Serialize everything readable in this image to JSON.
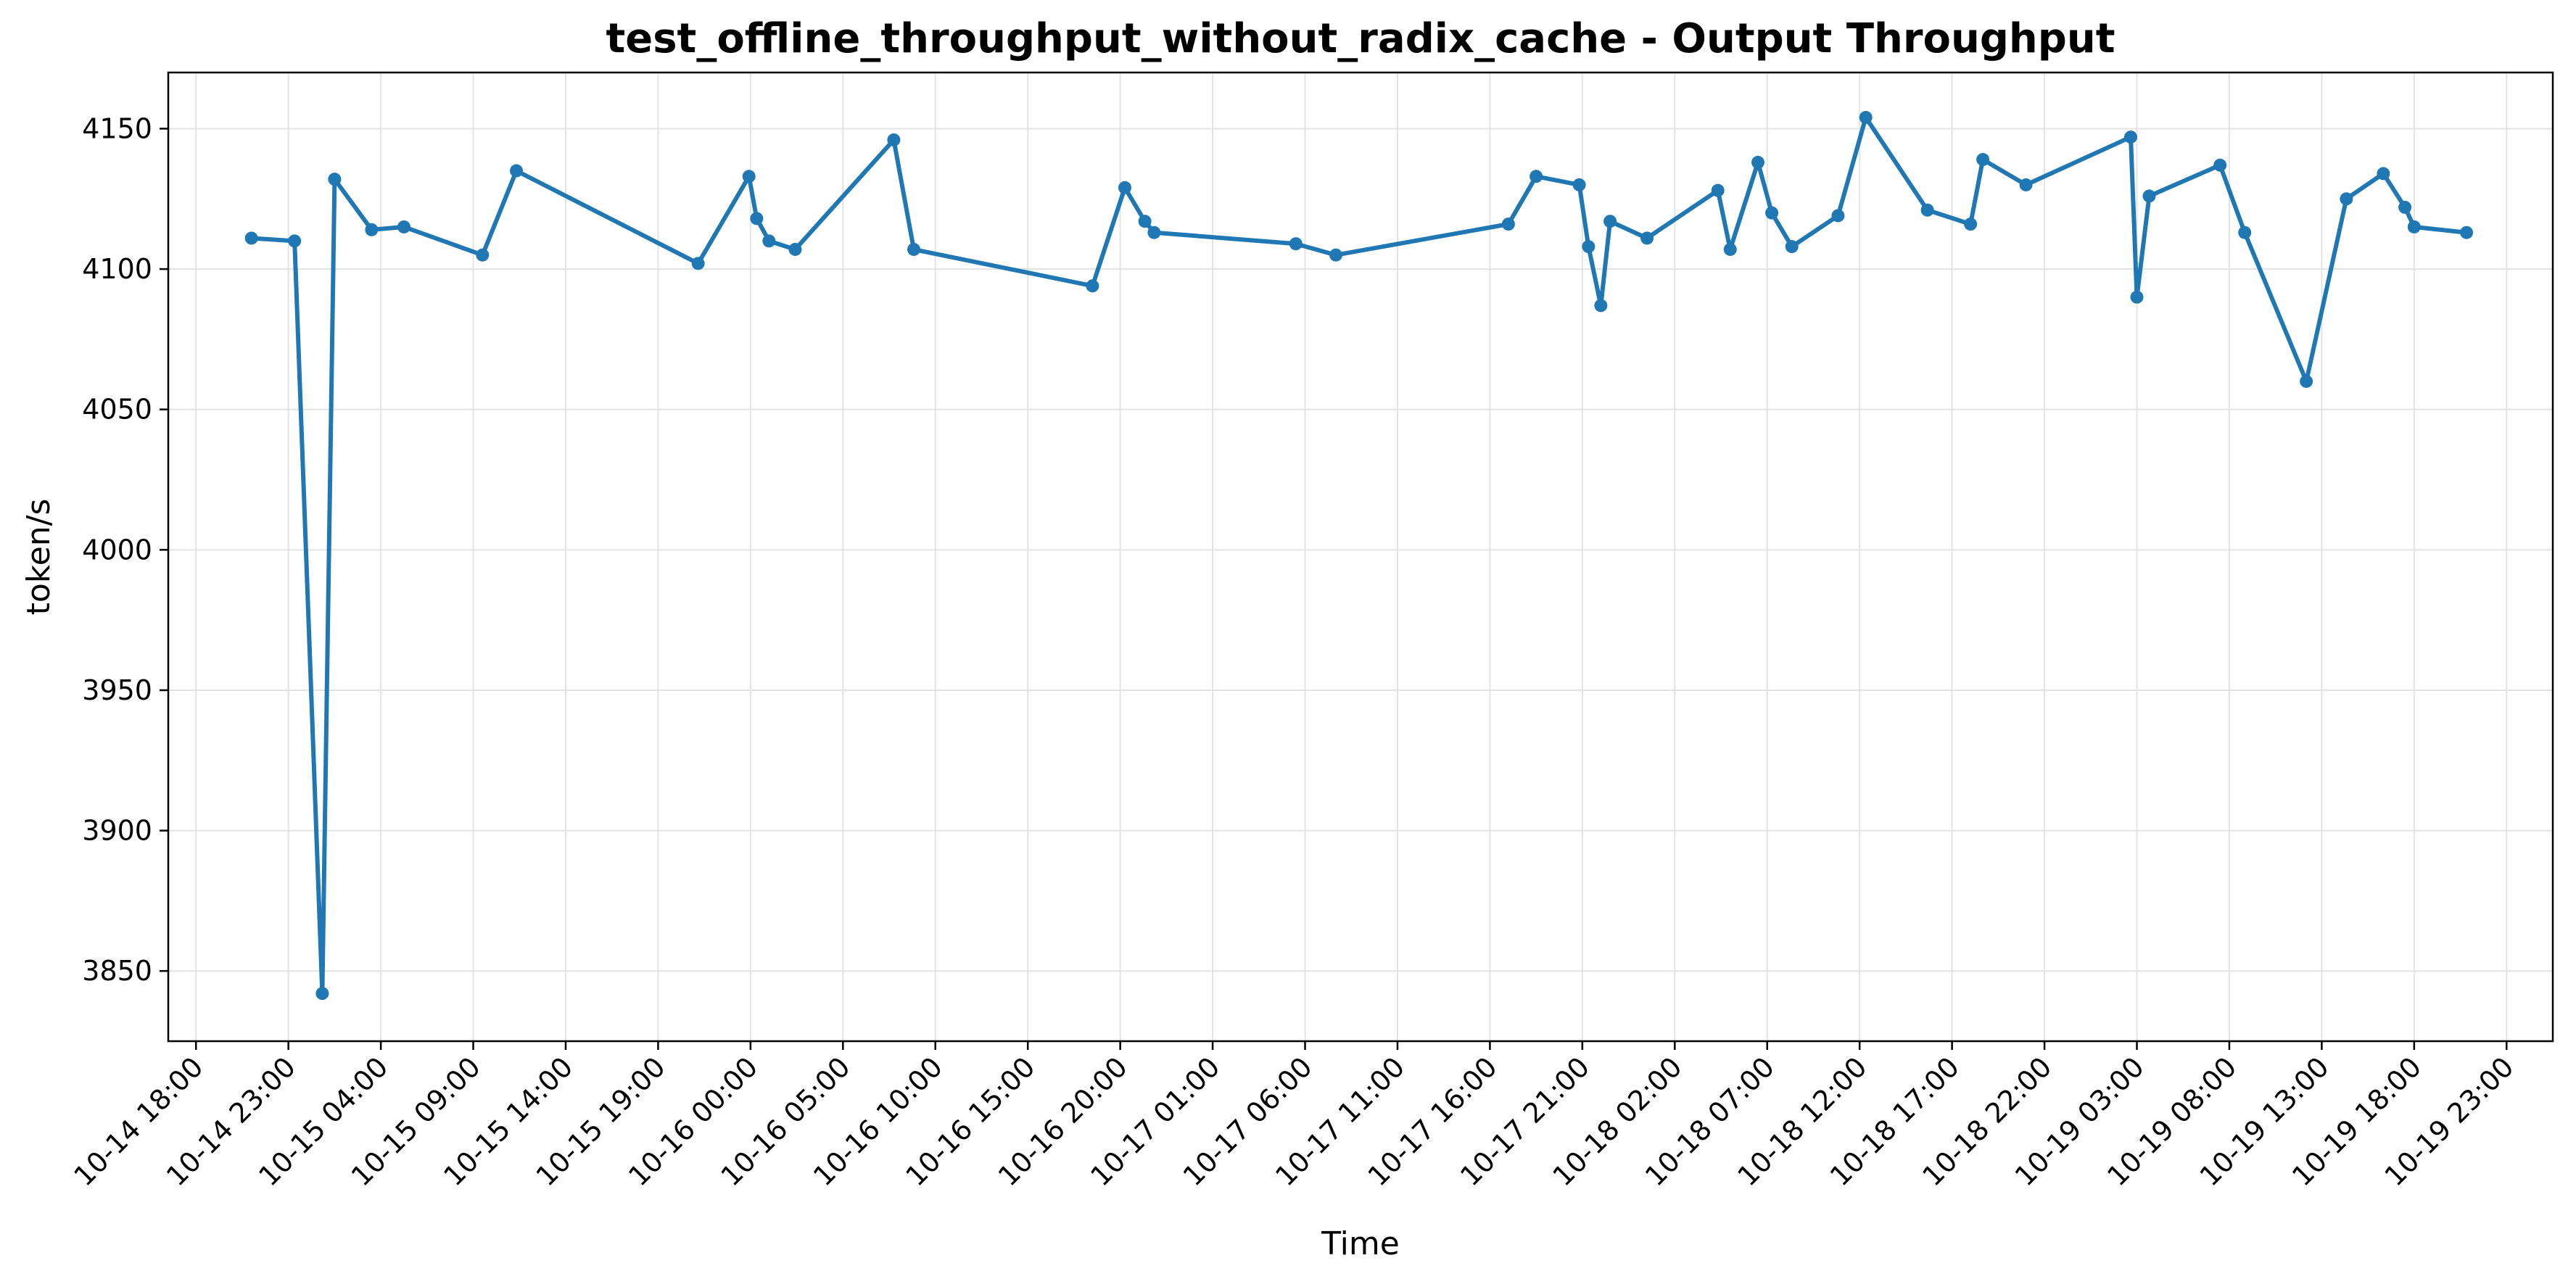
{
  "chart_data": {
    "type": "line",
    "title": "test_offline_throughput_without_radix_cache - Output Throughput",
    "xlabel": "Time",
    "ylabel": "token/s",
    "ylim": [
      3825,
      4170
    ],
    "xlim": [
      "10-14 16:30",
      "10-20 01:30"
    ],
    "grid": true,
    "line_color": "#1f77b4",
    "x_ticks": [
      "10-14 18:00",
      "10-14 23:00",
      "10-15 04:00",
      "10-15 09:00",
      "10-15 14:00",
      "10-15 19:00",
      "10-16 00:00",
      "10-16 05:00",
      "10-16 10:00",
      "10-16 15:00",
      "10-16 20:00",
      "10-17 01:00",
      "10-17 06:00",
      "10-17 11:00",
      "10-17 16:00",
      "10-17 21:00",
      "10-18 02:00",
      "10-18 07:00",
      "10-18 12:00",
      "10-18 17:00",
      "10-18 22:00",
      "10-19 03:00",
      "10-19 08:00",
      "10-19 13:00",
      "10-19 18:00",
      "10-19 23:00"
    ],
    "y_ticks": [
      3850,
      3900,
      3950,
      4000,
      4050,
      4100,
      4150
    ],
    "series": [
      {
        "points": [
          {
            "x": "10-14 21:00",
            "y": 4111
          },
          {
            "x": "10-14 23:20",
            "y": 4110
          },
          {
            "x": "10-15 00:50",
            "y": 3842
          },
          {
            "x": "10-15 01:30",
            "y": 4132
          },
          {
            "x": "10-15 03:30",
            "y": 4114
          },
          {
            "x": "10-15 05:15",
            "y": 4115
          },
          {
            "x": "10-15 09:30",
            "y": 4105
          },
          {
            "x": "10-15 11:20",
            "y": 4135
          },
          {
            "x": "10-15 21:10",
            "y": 4102
          },
          {
            "x": "10-15 23:55",
            "y": 4133
          },
          {
            "x": "10-16 00:20",
            "y": 4118
          },
          {
            "x": "10-16 01:00",
            "y": 4110
          },
          {
            "x": "10-16 02:25",
            "y": 4107
          },
          {
            "x": "10-16 07:45",
            "y": 4146
          },
          {
            "x": "10-16 08:50",
            "y": 4107
          },
          {
            "x": "10-16 18:30",
            "y": 4094
          },
          {
            "x": "10-16 20:15",
            "y": 4129
          },
          {
            "x": "10-16 21:20",
            "y": 4117
          },
          {
            "x": "10-16 21:50",
            "y": 4113
          },
          {
            "x": "10-17 05:30",
            "y": 4109
          },
          {
            "x": "10-17 07:40",
            "y": 4105
          },
          {
            "x": "10-17 17:00",
            "y": 4116
          },
          {
            "x": "10-17 18:30",
            "y": 4133
          },
          {
            "x": "10-17 20:50",
            "y": 4130
          },
          {
            "x": "10-17 21:20",
            "y": 4108
          },
          {
            "x": "10-17 22:00",
            "y": 4087
          },
          {
            "x": "10-17 22:30",
            "y": 4117
          },
          {
            "x": "10-18 00:30",
            "y": 4111
          },
          {
            "x": "10-18 04:20",
            "y": 4128
          },
          {
            "x": "10-18 05:00",
            "y": 4107
          },
          {
            "x": "10-18 06:30",
            "y": 4138
          },
          {
            "x": "10-18 07:15",
            "y": 4120
          },
          {
            "x": "10-18 08:20",
            "y": 4108
          },
          {
            "x": "10-18 10:50",
            "y": 4119
          },
          {
            "x": "10-18 12:20",
            "y": 4154
          },
          {
            "x": "10-18 15:40",
            "y": 4121
          },
          {
            "x": "10-18 18:00",
            "y": 4116
          },
          {
            "x": "10-18 18:40",
            "y": 4139
          },
          {
            "x": "10-18 21:00",
            "y": 4130
          },
          {
            "x": "10-19 02:40",
            "y": 4147
          },
          {
            "x": "10-19 03:00",
            "y": 4090
          },
          {
            "x": "10-19 03:40",
            "y": 4126
          },
          {
            "x": "10-19 07:30",
            "y": 4137
          },
          {
            "x": "10-19 08:50",
            "y": 4113
          },
          {
            "x": "10-19 12:10",
            "y": 4060
          },
          {
            "x": "10-19 14:20",
            "y": 4125
          },
          {
            "x": "10-19 16:20",
            "y": 4134
          },
          {
            "x": "10-19 17:30",
            "y": 4122
          },
          {
            "x": "10-19 18:00",
            "y": 4115
          },
          {
            "x": "10-19 20:50",
            "y": 4113
          }
        ]
      }
    ]
  }
}
